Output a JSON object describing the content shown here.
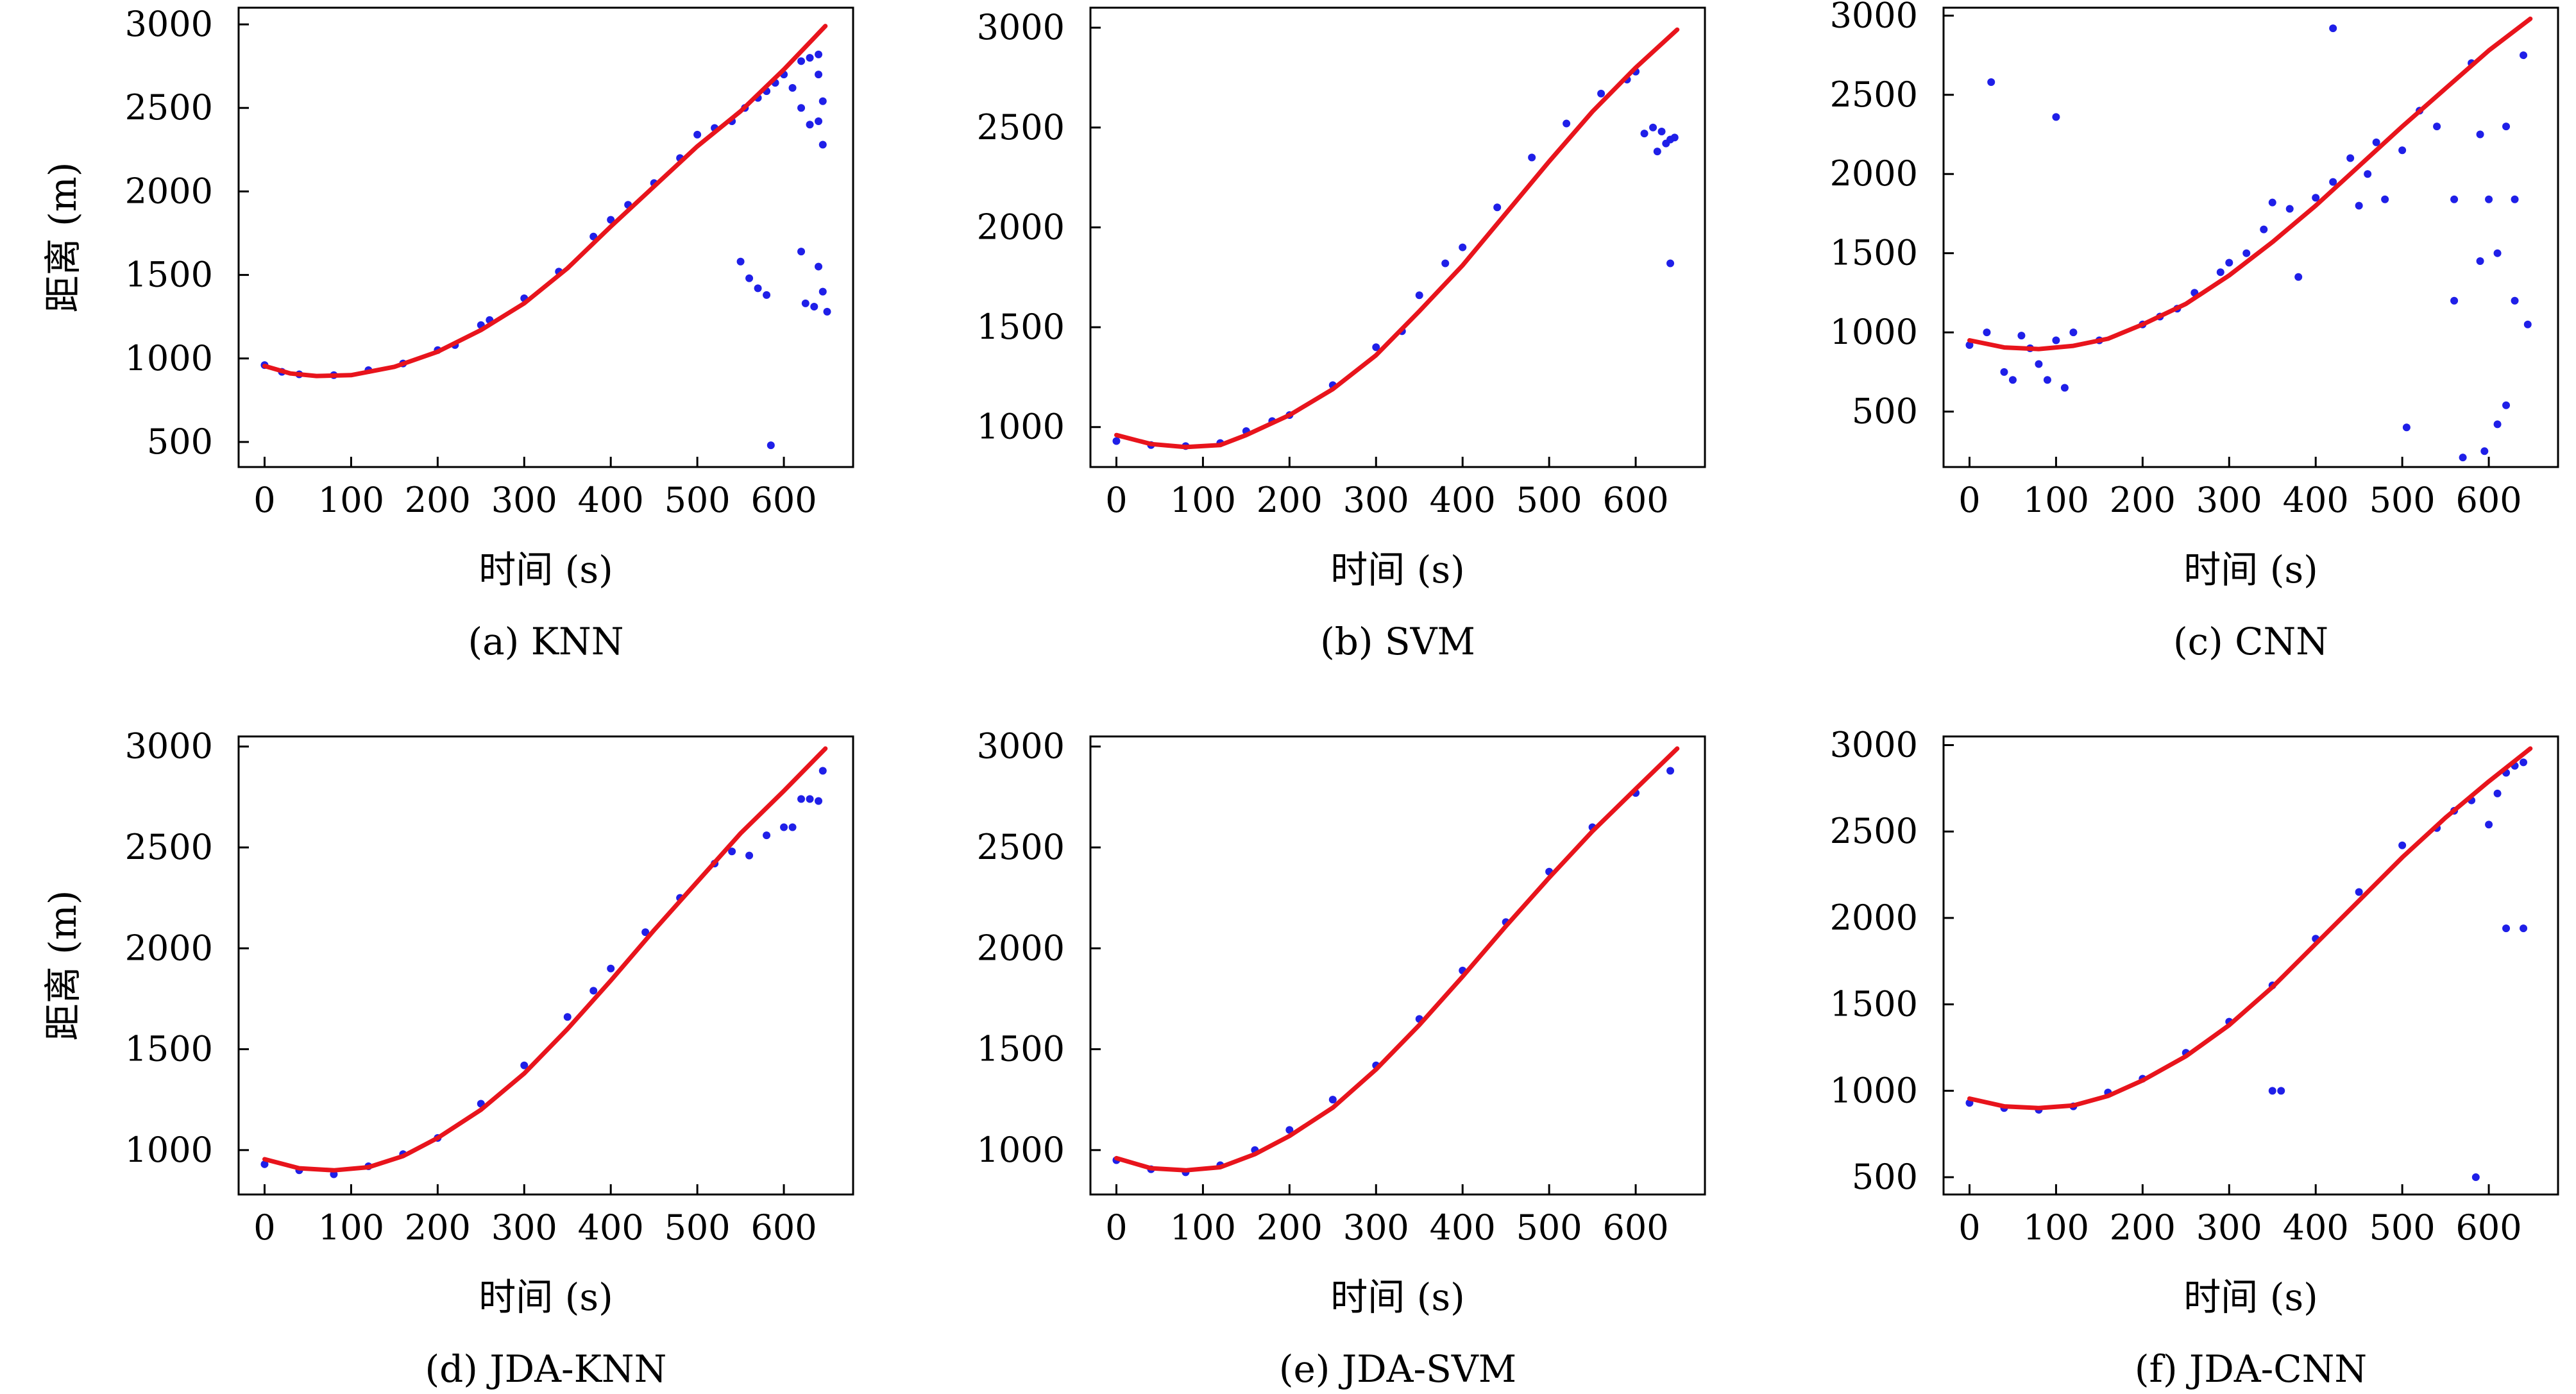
{
  "colors": {
    "fit_line": "#e8141c",
    "points": "#1f1fe8",
    "axes": "#000000"
  },
  "chart_data": [
    {
      "type": "scatter",
      "caption": "(a) KNN",
      "xlabel": "时间 (s)",
      "ylabel": "距离 (m)",
      "xlim": [
        -30,
        680
      ],
      "ylim": [
        350,
        3100
      ],
      "xticks": [
        0,
        100,
        200,
        300,
        400,
        500,
        600
      ],
      "yticks": [
        500,
        1000,
        1500,
        2000,
        2500,
        3000
      ],
      "fit_line": [
        [
          0,
          955
        ],
        [
          30,
          910
        ],
        [
          60,
          895
        ],
        [
          100,
          900
        ],
        [
          150,
          950
        ],
        [
          200,
          1040
        ],
        [
          250,
          1170
        ],
        [
          300,
          1330
        ],
        [
          350,
          1540
        ],
        [
          400,
          1790
        ],
        [
          450,
          2030
        ],
        [
          500,
          2270
        ],
        [
          550,
          2480
        ],
        [
          600,
          2730
        ],
        [
          648,
          2990
        ]
      ],
      "points": [
        [
          0,
          960
        ],
        [
          20,
          920
        ],
        [
          40,
          905
        ],
        [
          80,
          900
        ],
        [
          120,
          930
        ],
        [
          160,
          970
        ],
        [
          200,
          1050
        ],
        [
          220,
          1080
        ],
        [
          250,
          1200
        ],
        [
          260,
          1230
        ],
        [
          300,
          1360
        ],
        [
          340,
          1520
        ],
        [
          380,
          1730
        ],
        [
          400,
          1830
        ],
        [
          420,
          1920
        ],
        [
          450,
          2050
        ],
        [
          480,
          2200
        ],
        [
          500,
          2340
        ],
        [
          520,
          2380
        ],
        [
          540,
          2420
        ],
        [
          555,
          2500
        ],
        [
          570,
          2560
        ],
        [
          580,
          2600
        ],
        [
          590,
          2650
        ],
        [
          600,
          2700
        ],
        [
          610,
          2620
        ],
        [
          620,
          2780
        ],
        [
          630,
          2800
        ],
        [
          640,
          2820
        ],
        [
          640,
          2700
        ],
        [
          645,
          2540
        ],
        [
          620,
          2500
        ],
        [
          630,
          2400
        ],
        [
          640,
          2420
        ],
        [
          645,
          2280
        ],
        [
          550,
          1580
        ],
        [
          560,
          1480
        ],
        [
          570,
          1420
        ],
        [
          580,
          1380
        ],
        [
          620,
          1640
        ],
        [
          625,
          1330
        ],
        [
          635,
          1310
        ],
        [
          640,
          1550
        ],
        [
          645,
          1400
        ],
        [
          650,
          1280
        ],
        [
          585,
          480
        ]
      ]
    },
    {
      "type": "scatter",
      "caption": "(b) SVM",
      "xlabel": "时间 (s)",
      "ylabel": "",
      "xlim": [
        -30,
        680
      ],
      "ylim": [
        800,
        3100
      ],
      "xticks": [
        0,
        100,
        200,
        300,
        400,
        500,
        600
      ],
      "yticks": [
        1000,
        1500,
        2000,
        2500,
        3000
      ],
      "fit_line": [
        [
          0,
          960
        ],
        [
          40,
          915
        ],
        [
          80,
          900
        ],
        [
          120,
          910
        ],
        [
          150,
          960
        ],
        [
          200,
          1060
        ],
        [
          250,
          1190
        ],
        [
          300,
          1360
        ],
        [
          350,
          1580
        ],
        [
          400,
          1810
        ],
        [
          450,
          2070
        ],
        [
          500,
          2330
        ],
        [
          550,
          2580
        ],
        [
          600,
          2800
        ],
        [
          648,
          2990
        ]
      ],
      "points": [
        [
          0,
          930
        ],
        [
          40,
          910
        ],
        [
          80,
          905
        ],
        [
          120,
          920
        ],
        [
          150,
          980
        ],
        [
          180,
          1030
        ],
        [
          200,
          1060
        ],
        [
          250,
          1210
        ],
        [
          300,
          1400
        ],
        [
          330,
          1480
        ],
        [
          350,
          1660
        ],
        [
          380,
          1820
        ],
        [
          400,
          1900
        ],
        [
          440,
          2100
        ],
        [
          480,
          2350
        ],
        [
          520,
          2520
        ],
        [
          560,
          2670
        ],
        [
          590,
          2740
        ],
        [
          600,
          2780
        ],
        [
          610,
          2470
        ],
        [
          620,
          2500
        ],
        [
          630,
          2480
        ],
        [
          640,
          2440
        ],
        [
          645,
          2450
        ],
        [
          625,
          2380
        ],
        [
          635,
          2420
        ],
        [
          640,
          1820
        ]
      ]
    },
    {
      "type": "scatter",
      "caption": "(c) CNN",
      "xlabel": "时间 (s)",
      "ylabel": "",
      "xlim": [
        -30,
        680
      ],
      "ylim": [
        150,
        3050
      ],
      "xticks": [
        0,
        100,
        200,
        300,
        400,
        500,
        600
      ],
      "yticks": [
        500,
        1000,
        1500,
        2000,
        2500,
        3000
      ],
      "fit_line": [
        [
          0,
          950
        ],
        [
          40,
          905
        ],
        [
          80,
          895
        ],
        [
          120,
          915
        ],
        [
          160,
          960
        ],
        [
          200,
          1050
        ],
        [
          250,
          1180
        ],
        [
          300,
          1360
        ],
        [
          350,
          1570
        ],
        [
          400,
          1800
        ],
        [
          450,
          2050
        ],
        [
          500,
          2300
        ],
        [
          550,
          2540
        ],
        [
          600,
          2780
        ],
        [
          648,
          2980
        ]
      ],
      "points": [
        [
          0,
          920
        ],
        [
          20,
          1000
        ],
        [
          40,
          750
        ],
        [
          50,
          700
        ],
        [
          60,
          980
        ],
        [
          70,
          900
        ],
        [
          80,
          800
        ],
        [
          90,
          700
        ],
        [
          100,
          950
        ],
        [
          110,
          650
        ],
        [
          120,
          1000
        ],
        [
          150,
          950
        ],
        [
          200,
          1050
        ],
        [
          220,
          1100
        ],
        [
          240,
          1150
        ],
        [
          260,
          1250
        ],
        [
          290,
          1380
        ],
        [
          300,
          1440
        ],
        [
          320,
          1500
        ],
        [
          340,
          1650
        ],
        [
          350,
          1820
        ],
        [
          370,
          1780
        ],
        [
          380,
          1350
        ],
        [
          400,
          1850
        ],
        [
          420,
          1950
        ],
        [
          440,
          2100
        ],
        [
          450,
          1800
        ],
        [
          460,
          2000
        ],
        [
          470,
          2200
        ],
        [
          480,
          1840
        ],
        [
          500,
          2150
        ],
        [
          520,
          2400
        ],
        [
          540,
          2300
        ],
        [
          560,
          1840
        ],
        [
          580,
          2700
        ],
        [
          590,
          2250
        ],
        [
          600,
          1840
        ],
        [
          610,
          1500
        ],
        [
          620,
          2300
        ],
        [
          630,
          1840
        ],
        [
          640,
          2750
        ],
        [
          645,
          1050
        ],
        [
          25,
          2580
        ],
        [
          100,
          2360
        ],
        [
          420,
          2920
        ],
        [
          505,
          400
        ],
        [
          570,
          210
        ],
        [
          595,
          250
        ],
        [
          610,
          420
        ],
        [
          620,
          540
        ],
        [
          630,
          1200
        ],
        [
          590,
          1450
        ],
        [
          560,
          1200
        ]
      ]
    },
    {
      "type": "scatter",
      "caption": "(d) JDA-KNN",
      "xlabel": "时间 (s)",
      "ylabel": "距离 (m)",
      "xlim": [
        -30,
        680
      ],
      "ylim": [
        780,
        3050
      ],
      "xticks": [
        0,
        100,
        200,
        300,
        400,
        500,
        600
      ],
      "yticks": [
        1000,
        1500,
        2000,
        2500,
        3000
      ],
      "fit_line": [
        [
          0,
          955
        ],
        [
          40,
          910
        ],
        [
          80,
          900
        ],
        [
          120,
          915
        ],
        [
          160,
          970
        ],
        [
          200,
          1060
        ],
        [
          250,
          1200
        ],
        [
          300,
          1380
        ],
        [
          350,
          1600
        ],
        [
          400,
          1840
        ],
        [
          450,
          2090
        ],
        [
          500,
          2330
        ],
        [
          550,
          2570
        ],
        [
          600,
          2780
        ],
        [
          648,
          2990
        ]
      ],
      "points": [
        [
          0,
          930
        ],
        [
          40,
          900
        ],
        [
          80,
          880
        ],
        [
          120,
          920
        ],
        [
          160,
          980
        ],
        [
          200,
          1060
        ],
        [
          250,
          1230
        ],
        [
          300,
          1420
        ],
        [
          350,
          1660
        ],
        [
          380,
          1790
        ],
        [
          400,
          1900
        ],
        [
          440,
          2080
        ],
        [
          480,
          2250
        ],
        [
          520,
          2420
        ],
        [
          540,
          2480
        ],
        [
          560,
          2460
        ],
        [
          580,
          2560
        ],
        [
          600,
          2600
        ],
        [
          610,
          2600
        ],
        [
          620,
          2740
        ],
        [
          630,
          2740
        ],
        [
          640,
          2730
        ],
        [
          645,
          2880
        ]
      ]
    },
    {
      "type": "scatter",
      "caption": "(e) JDA-SVM",
      "xlabel": "时间 (s)",
      "ylabel": "",
      "xlim": [
        -30,
        680
      ],
      "ylim": [
        780,
        3050
      ],
      "xticks": [
        0,
        100,
        200,
        300,
        400,
        500,
        600
      ],
      "yticks": [
        1000,
        1500,
        2000,
        2500,
        3000
      ],
      "fit_line": [
        [
          0,
          960
        ],
        [
          40,
          910
        ],
        [
          80,
          900
        ],
        [
          120,
          915
        ],
        [
          160,
          980
        ],
        [
          200,
          1070
        ],
        [
          250,
          1210
        ],
        [
          300,
          1400
        ],
        [
          350,
          1620
        ],
        [
          400,
          1860
        ],
        [
          450,
          2110
        ],
        [
          500,
          2350
        ],
        [
          550,
          2580
        ],
        [
          600,
          2790
        ],
        [
          648,
          2990
        ]
      ],
      "points": [
        [
          0,
          950
        ],
        [
          40,
          905
        ],
        [
          80,
          890
        ],
        [
          120,
          925
        ],
        [
          160,
          1000
        ],
        [
          200,
          1100
        ],
        [
          250,
          1250
        ],
        [
          300,
          1420
        ],
        [
          350,
          1650
        ],
        [
          400,
          1890
        ],
        [
          450,
          2130
        ],
        [
          500,
          2380
        ],
        [
          550,
          2600
        ],
        [
          600,
          2770
        ],
        [
          640,
          2880
        ]
      ]
    },
    {
      "type": "scatter",
      "caption": "(f) JDA-CNN",
      "xlabel": "时间 (s)",
      "ylabel": "",
      "xlim": [
        -30,
        680
      ],
      "ylim": [
        400,
        3050
      ],
      "xticks": [
        0,
        100,
        200,
        300,
        400,
        500,
        600
      ],
      "yticks": [
        500,
        1000,
        1500,
        2000,
        2500,
        3000
      ],
      "fit_line": [
        [
          0,
          955
        ],
        [
          40,
          910
        ],
        [
          80,
          900
        ],
        [
          120,
          915
        ],
        [
          160,
          970
        ],
        [
          200,
          1060
        ],
        [
          250,
          1200
        ],
        [
          300,
          1380
        ],
        [
          350,
          1600
        ],
        [
          400,
          1850
        ],
        [
          450,
          2100
        ],
        [
          500,
          2350
        ],
        [
          550,
          2580
        ],
        [
          600,
          2790
        ],
        [
          648,
          2980
        ]
      ],
      "points": [
        [
          0,
          930
        ],
        [
          40,
          900
        ],
        [
          80,
          890
        ],
        [
          120,
          910
        ],
        [
          160,
          990
        ],
        [
          200,
          1070
        ],
        [
          250,
          1220
        ],
        [
          300,
          1400
        ],
        [
          350,
          1610
        ],
        [
          400,
          1880
        ],
        [
          450,
          2150
        ],
        [
          500,
          2420
        ],
        [
          540,
          2520
        ],
        [
          560,
          2620
        ],
        [
          580,
          2680
        ],
        [
          600,
          2540
        ],
        [
          610,
          2720
        ],
        [
          620,
          2840
        ],
        [
          630,
          2880
        ],
        [
          640,
          2900
        ],
        [
          350,
          1000
        ],
        [
          360,
          1000
        ],
        [
          620,
          1940
        ],
        [
          640,
          1940
        ],
        [
          585,
          500
        ]
      ]
    }
  ]
}
